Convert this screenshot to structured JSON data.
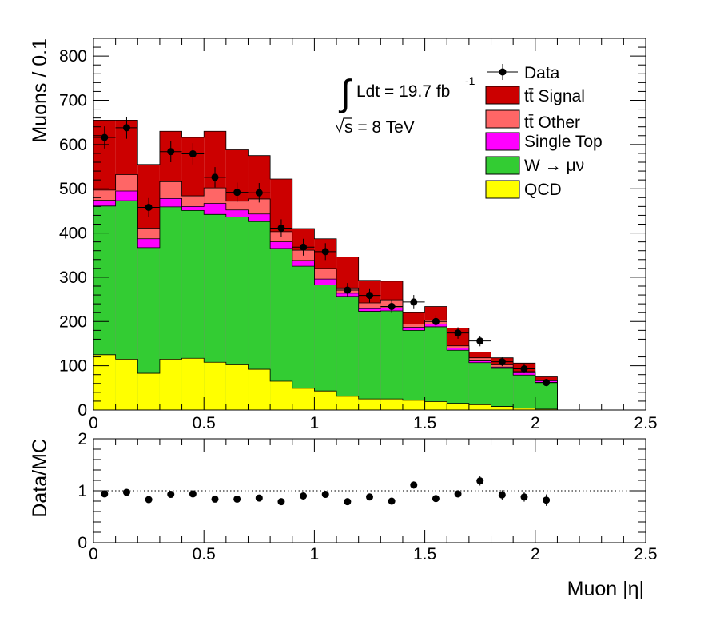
{
  "chart_data": [
    {
      "type": "histogram-stacked",
      "ylabel": "Muons / 0.1",
      "xlabel": "",
      "xlim": [
        0,
        2.5
      ],
      "ylim": [
        0,
        840
      ],
      "x_ticks": [
        "0",
        "0.5",
        "1",
        "1.5",
        "2",
        "2.5"
      ],
      "y_ticks": [
        "0",
        "100",
        "200",
        "300",
        "400",
        "500",
        "600",
        "700",
        "800"
      ],
      "grid": false,
      "legend_position": "top-right",
      "annotations": {
        "lumi": "Ldt = 19.7 fb",
        "lumi_exp": "-1",
        "energy": "s = 8 TeV"
      },
      "bin_edges": [
        0,
        0.1,
        0.2,
        0.3,
        0.4,
        0.5,
        0.6,
        0.7,
        0.8,
        0.9,
        1.0,
        1.1,
        1.2,
        1.3,
        1.4,
        1.5,
        1.6,
        1.7,
        1.8,
        1.9,
        2.0,
        2.1
      ],
      "stack_totals": [
        {
          "name": "QCD",
          "color": "#ffff00",
          "values": [
            125,
            115,
            83,
            115,
            117,
            108,
            102,
            92,
            65,
            49,
            43,
            31,
            25,
            25,
            22,
            19,
            15,
            12,
            8,
            4,
            2
          ]
        },
        {
          "name": "W → μν",
          "color": "#33cc33",
          "values": [
            461,
            473,
            367,
            459,
            451,
            442,
            436,
            426,
            365,
            325,
            283,
            257,
            223,
            224,
            180,
            188,
            135,
            107,
            94,
            79,
            62
          ]
        },
        {
          "name": "Single Top",
          "color": "#ff00ff",
          "values": [
            474,
            495,
            387,
            478,
            460,
            467,
            452,
            443,
            380,
            338,
            296,
            264,
            229,
            231,
            187,
            194,
            140,
            111,
            97,
            84,
            66
          ]
        },
        {
          "name": "tt̄ Other",
          "color": "#ff6666",
          "values": [
            497,
            532,
            411,
            516,
            484,
            502,
            472,
            477,
            403,
            361,
            320,
            276,
            242,
            249,
            194,
            203,
            145,
            118,
            102,
            87,
            68
          ]
        },
        {
          "name": "tt̄ Signal",
          "color": "#cc0000",
          "values": [
            655,
            655,
            555,
            630,
            616,
            630,
            588,
            575,
            522,
            410,
            387,
            346,
            293,
            291,
            220,
            234,
            185,
            131,
            118,
            106,
            75
          ]
        }
      ],
      "data": {
        "name": "Data",
        "x": [
          0.05,
          0.15,
          0.25,
          0.35,
          0.45,
          0.55,
          0.65,
          0.75,
          0.85,
          0.95,
          1.05,
          1.15,
          1.25,
          1.35,
          1.45,
          1.55,
          1.65,
          1.75,
          1.85,
          1.95,
          2.05
        ],
        "y": [
          616,
          638,
          458,
          584,
          579,
          526,
          492,
          491,
          411,
          368,
          358,
          271,
          259,
          234,
          244,
          200,
          174,
          156,
          109,
          93,
          62
        ],
        "err": [
          25,
          25,
          21,
          24,
          24,
          23,
          22,
          22,
          20,
          19,
          19,
          16,
          16,
          15,
          16,
          14,
          13,
          12,
          10,
          10,
          8
        ]
      }
    },
    {
      "type": "scatter",
      "ylabel": "Data/MC",
      "xlabel": "Muon |η|",
      "xlim": [
        0,
        2.5
      ],
      "ylim": [
        0,
        2
      ],
      "x_ticks": [
        "0",
        "0.5",
        "1",
        "1.5",
        "2",
        "2.5"
      ],
      "y_ticks": [
        "0",
        "1",
        "2"
      ],
      "reference_line": 1,
      "x": [
        0.05,
        0.15,
        0.25,
        0.35,
        0.45,
        0.55,
        0.65,
        0.75,
        0.85,
        0.95,
        1.05,
        1.15,
        1.25,
        1.35,
        1.45,
        1.55,
        1.65,
        1.75,
        1.85,
        1.95,
        2.05
      ],
      "y": [
        0.94,
        0.97,
        0.83,
        0.93,
        0.94,
        0.84,
        0.84,
        0.86,
        0.79,
        0.9,
        0.93,
        0.79,
        0.88,
        0.8,
        1.11,
        0.85,
        0.94,
        1.19,
        0.92,
        0.88,
        0.82
      ],
      "err": [
        0.04,
        0.04,
        0.04,
        0.04,
        0.04,
        0.04,
        0.04,
        0.04,
        0.04,
        0.05,
        0.05,
        0.05,
        0.06,
        0.06,
        0.07,
        0.06,
        0.07,
        0.09,
        0.09,
        0.09,
        0.11
      ]
    }
  ],
  "legend": [
    {
      "label": "Data",
      "kind": "marker"
    },
    {
      "label": "tt̄ Signal",
      "color": "#cc0000",
      "kind": "box"
    },
    {
      "label": "tt̄ Other",
      "color": "#ff6666",
      "kind": "box"
    },
    {
      "label": "Single Top",
      "color": "#ff00ff",
      "kind": "box"
    },
    {
      "label": "W → μν",
      "color": "#33cc33",
      "kind": "box"
    },
    {
      "label": "QCD",
      "color": "#ffff00",
      "kind": "box"
    }
  ]
}
